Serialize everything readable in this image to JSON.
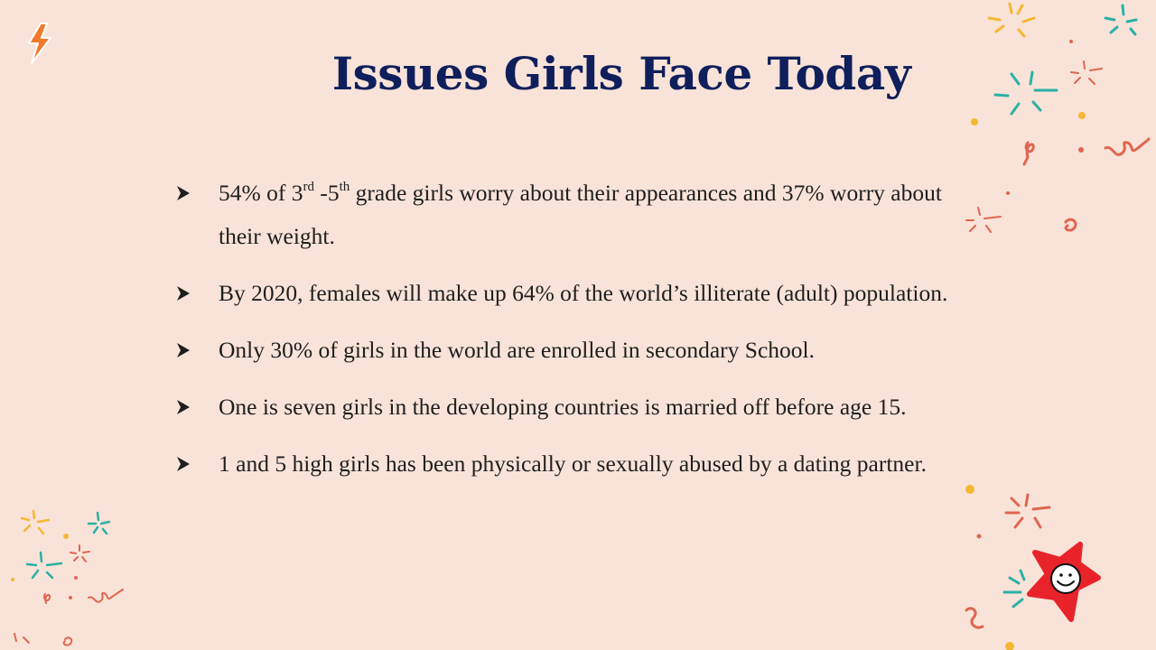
{
  "slide": {
    "title": "Issues Girls Face Today",
    "bullets": [
      {
        "parts": [
          "54% of 3",
          "rd",
          " -5",
          "th",
          " grade girls worry about their appearances and 37% worry about their weight."
        ]
      },
      {
        "text": "By 2020, females will make up 64% of the world’s illiterate (adult) population."
      },
      {
        "text": "Only 30% of girls in the world are enrolled in secondary School."
      },
      {
        "text": "One is seven girls in the developing countries is married off  before age 15."
      },
      {
        "text": "1 and 5 high girls has been physically or sexually abused by a dating partner."
      }
    ]
  },
  "icons": {
    "bullet": "arrow-bullet-icon",
    "top_left": "lightning-icon",
    "bottom_right": "smiling-star-icon"
  },
  "colors": {
    "background": "#f9e3d8",
    "title": "#0f1f5c",
    "text": "#1e1e1e",
    "star": "#e8232a",
    "confetti_teal": "#2bb0a6",
    "confetti_yellow": "#f5b733",
    "confetti_coral": "#e0654f"
  }
}
